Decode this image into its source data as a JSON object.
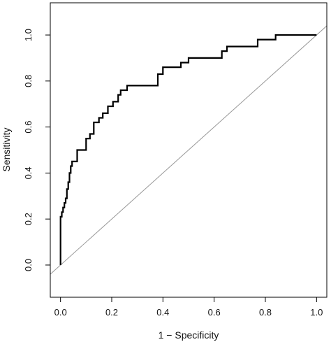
{
  "chart_data": {
    "type": "line",
    "title": "",
    "xlabel": "1 − Specificity",
    "ylabel": "Sensitivity",
    "xlim": [
      -0.04,
      1.04
    ],
    "ylim": [
      -0.14,
      1.14
    ],
    "x_ticks": [
      0.0,
      0.2,
      0.4,
      0.6,
      0.8,
      1.0
    ],
    "x_tick_labels": [
      "0.0",
      "0.2",
      "0.4",
      "0.6",
      "0.8",
      "1.0"
    ],
    "y_ticks": [
      0.0,
      0.2,
      0.4,
      0.6,
      0.8,
      1.0
    ],
    "y_tick_labels": [
      "0.0",
      "0.2",
      "0.4",
      "0.6",
      "0.8",
      "1.0"
    ],
    "grid": false,
    "legend": "none",
    "series": [
      {
        "style": "step",
        "color": "#000000",
        "x": [
          0.0,
          0.0,
          0.005,
          0.005,
          0.01,
          0.01,
          0.015,
          0.015,
          0.02,
          0.02,
          0.025,
          0.025,
          0.03,
          0.03,
          0.035,
          0.035,
          0.04,
          0.04,
          0.045,
          0.045,
          0.05,
          0.05,
          0.065,
          0.065,
          0.08,
          0.08,
          0.1,
          0.1,
          0.115,
          0.115,
          0.13,
          0.13,
          0.15,
          0.15,
          0.165,
          0.165,
          0.185,
          0.185,
          0.205,
          0.205,
          0.225,
          0.225,
          0.235,
          0.235,
          0.245,
          0.245,
          0.26,
          0.26,
          0.38,
          0.38,
          0.4,
          0.4,
          0.47,
          0.47,
          0.5,
          0.5,
          0.63,
          0.63,
          0.65,
          0.65,
          0.77,
          0.77,
          0.84,
          0.84,
          1.0
        ],
        "y": [
          0.0,
          0.21,
          0.21,
          0.23,
          0.23,
          0.25,
          0.25,
          0.27,
          0.27,
          0.29,
          0.29,
          0.33,
          0.33,
          0.36,
          0.36,
          0.4,
          0.4,
          0.43,
          0.43,
          0.45,
          0.45,
          0.45,
          0.45,
          0.5,
          0.5,
          0.5,
          0.5,
          0.55,
          0.55,
          0.57,
          0.57,
          0.62,
          0.62,
          0.64,
          0.64,
          0.66,
          0.66,
          0.69,
          0.69,
          0.71,
          0.71,
          0.74,
          0.74,
          0.76,
          0.76,
          0.76,
          0.76,
          0.78,
          0.78,
          0.83,
          0.83,
          0.86,
          0.86,
          0.88,
          0.88,
          0.9,
          0.9,
          0.93,
          0.93,
          0.95,
          0.95,
          0.98,
          0.98,
          1.0,
          1.0
        ]
      },
      {
        "style": "reference",
        "color": "#999999",
        "x": [
          -0.04,
          1.04
        ],
        "y": [
          -0.04,
          1.04
        ]
      }
    ]
  }
}
